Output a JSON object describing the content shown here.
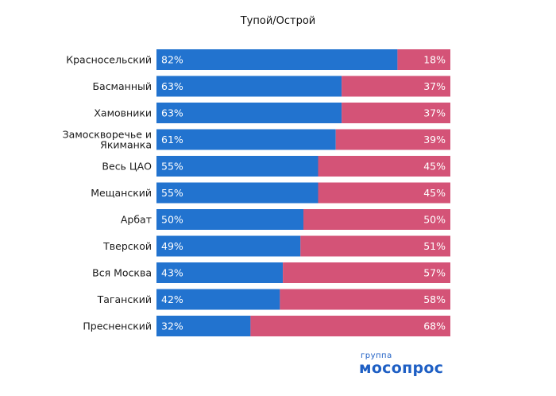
{
  "chart_data": {
    "type": "bar",
    "orientation": "horizontal",
    "stacked": true,
    "normalized_percent": true,
    "title": "Тупой/Острой",
    "categories": [
      "Красносельский",
      "Басманный",
      "Хамовники",
      "Замоскворечье и Якиманка",
      "Весь ЦАО",
      "Мещанский",
      "Арбат",
      "Тверской",
      "Вся Москва",
      "Таганский",
      "Пресненский"
    ],
    "category_label_lines": [
      [
        "Красносельский"
      ],
      [
        "Басманный"
      ],
      [
        "Хамовники"
      ],
      [
        "Замоскворечье и",
        "Якиманка"
      ],
      [
        "Весь ЦАО"
      ],
      [
        "Мещанский"
      ],
      [
        "Арбат"
      ],
      [
        "Тверской"
      ],
      [
        "Вся Москва"
      ],
      [
        "Таганский"
      ],
      [
        "Пресненский"
      ]
    ],
    "series": [
      {
        "values": [
          82,
          63,
          63,
          61,
          55,
          55,
          50,
          49,
          43,
          42,
          32
        ],
        "labels": [
          "82%",
          "63%",
          "63%",
          "61%",
          "55%",
          "55%",
          "50%",
          "49%",
          "43%",
          "42%",
          "32%"
        ],
        "color": "#2273cf"
      },
      {
        "values": [
          18,
          37,
          37,
          39,
          45,
          45,
          50,
          51,
          57,
          58,
          68
        ],
        "labels": [
          "18%",
          "37%",
          "37%",
          "39%",
          "45%",
          "45%",
          "50%",
          "51%",
          "57%",
          "58%",
          "68%"
        ],
        "color": "#d45377"
      }
    ],
    "xlim": [
      0,
      100
    ],
    "legend": "none",
    "grid": false
  },
  "logo": {
    "top": "группа",
    "main": "мосопрос"
  }
}
